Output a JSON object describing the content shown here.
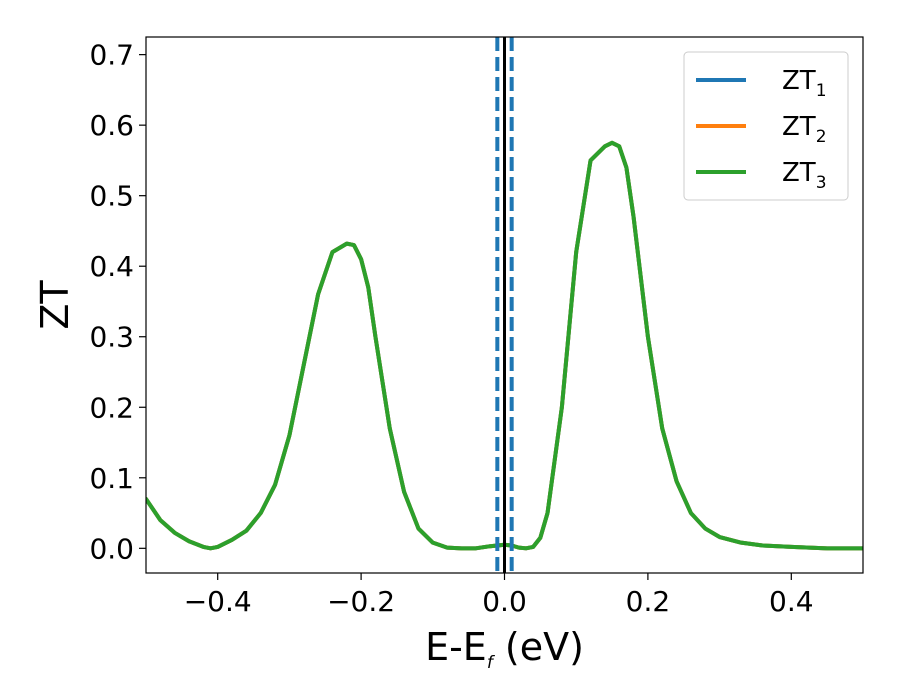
{
  "chart_data": {
    "type": "line",
    "xlabel_main": "E-E",
    "xlabel_sub": "f",
    "xlabel_unit": " (eV)",
    "ylabel": "ZT",
    "xlim": [
      -0.5,
      0.5
    ],
    "ylim": [
      -0.035,
      0.725
    ],
    "x_ticks": [
      -0.4,
      -0.2,
      0.0,
      0.2,
      0.4
    ],
    "x_tick_labels": [
      "−0.4",
      "−0.2",
      "0.0",
      "0.2",
      "0.4"
    ],
    "y_ticks": [
      0.0,
      0.1,
      0.2,
      0.3,
      0.4,
      0.5,
      0.6,
      0.7
    ],
    "y_tick_labels": [
      "0.0",
      "0.1",
      "0.2",
      "0.3",
      "0.4",
      "0.5",
      "0.6",
      "0.7"
    ],
    "grid": false,
    "legend_position": "top-right",
    "x": [
      -0.5,
      -0.48,
      -0.46,
      -0.44,
      -0.42,
      -0.41,
      -0.4,
      -0.38,
      -0.36,
      -0.34,
      -0.32,
      -0.3,
      -0.28,
      -0.26,
      -0.24,
      -0.22,
      -0.21,
      -0.2,
      -0.19,
      -0.18,
      -0.16,
      -0.14,
      -0.12,
      -0.1,
      -0.08,
      -0.06,
      -0.04,
      -0.02,
      0.0,
      0.01,
      0.02,
      0.03,
      0.04,
      0.05,
      0.06,
      0.08,
      0.1,
      0.12,
      0.14,
      0.15,
      0.16,
      0.17,
      0.18,
      0.2,
      0.22,
      0.24,
      0.26,
      0.28,
      0.3,
      0.33,
      0.36,
      0.4,
      0.45,
      0.5
    ],
    "series": [
      {
        "name_main": "ZT",
        "name_sub": "1",
        "color": "#1f77b4",
        "y": [
          0.07,
          0.04,
          0.022,
          0.01,
          0.002,
          0.0,
          0.002,
          0.012,
          0.025,
          0.05,
          0.09,
          0.16,
          0.26,
          0.36,
          0.42,
          0.432,
          0.43,
          0.41,
          0.37,
          0.3,
          0.17,
          0.08,
          0.028,
          0.008,
          0.001,
          0.0,
          0.0,
          0.003,
          0.005,
          0.004,
          0.001,
          0.0,
          0.002,
          0.015,
          0.05,
          0.2,
          0.42,
          0.55,
          0.57,
          0.575,
          0.57,
          0.54,
          0.47,
          0.3,
          0.17,
          0.095,
          0.05,
          0.028,
          0.016,
          0.008,
          0.004,
          0.002,
          0.0,
          0.0
        ]
      },
      {
        "name_main": "ZT",
        "name_sub": "2",
        "color": "#ff7f0e",
        "y": [
          0.07,
          0.04,
          0.022,
          0.01,
          0.002,
          0.0,
          0.002,
          0.012,
          0.025,
          0.05,
          0.09,
          0.16,
          0.26,
          0.36,
          0.42,
          0.432,
          0.43,
          0.41,
          0.37,
          0.3,
          0.17,
          0.08,
          0.028,
          0.008,
          0.001,
          0.0,
          0.0,
          0.003,
          0.005,
          0.004,
          0.001,
          0.0,
          0.002,
          0.015,
          0.05,
          0.2,
          0.42,
          0.55,
          0.57,
          0.575,
          0.57,
          0.54,
          0.47,
          0.3,
          0.17,
          0.095,
          0.05,
          0.028,
          0.016,
          0.008,
          0.004,
          0.002,
          0.0,
          0.0
        ]
      },
      {
        "name_main": "ZT",
        "name_sub": "3",
        "color": "#2ca02c",
        "y": [
          0.07,
          0.04,
          0.022,
          0.01,
          0.002,
          0.0,
          0.002,
          0.012,
          0.025,
          0.05,
          0.09,
          0.16,
          0.26,
          0.36,
          0.42,
          0.432,
          0.43,
          0.41,
          0.37,
          0.3,
          0.17,
          0.08,
          0.028,
          0.008,
          0.001,
          0.0,
          0.0,
          0.003,
          0.005,
          0.004,
          0.001,
          0.0,
          0.002,
          0.015,
          0.05,
          0.2,
          0.42,
          0.55,
          0.57,
          0.575,
          0.57,
          0.54,
          0.47,
          0.3,
          0.17,
          0.095,
          0.05,
          0.028,
          0.016,
          0.008,
          0.004,
          0.002,
          0.0,
          0.0
        ]
      }
    ],
    "vertical_lines": [
      {
        "x": 0.0,
        "color": "#000000",
        "style": "solid"
      },
      {
        "x": -0.01,
        "color": "#1f77b4",
        "style": "dashed"
      },
      {
        "x": 0.01,
        "color": "#1f77b4",
        "style": "dashed"
      }
    ]
  }
}
